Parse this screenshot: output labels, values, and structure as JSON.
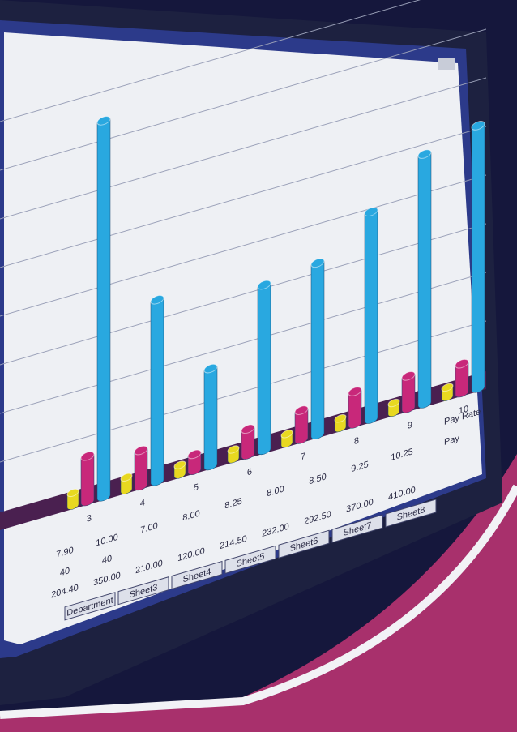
{
  "chart_data": {
    "type": "bar3d",
    "categories": [
      "3",
      "4",
      "5",
      "6",
      "7",
      "8",
      "9",
      "10"
    ],
    "series": [
      {
        "color": "#29a8e0",
        "values": [
          580,
          280,
          150,
          255,
          265,
          320,
          385,
          405
        ]
      },
      {
        "color": "#c8287a",
        "values": [
          70,
          55,
          25,
          40,
          45,
          50,
          50,
          45
        ]
      },
      {
        "color": "#e8d820",
        "values": [
          20,
          20,
          15,
          15,
          15,
          15,
          15,
          15
        ]
      }
    ],
    "ylim": [
      0,
      600
    ]
  },
  "table": {
    "row_labels": [
      "Pay Rate",
      "Pay"
    ],
    "rows": [
      [
        "7.90",
        "10.00",
        "7.00",
        "8.00",
        "8.25",
        "8.00",
        "8.50",
        "9.25",
        "10.25"
      ],
      [
        "40",
        "40"
      ],
      [
        "204.40",
        "350.00",
        "210.00",
        "120.00",
        "214.50",
        "232.00",
        "292.50",
        "370.00",
        "410.00"
      ]
    ]
  },
  "tabs": [
    "Department",
    "Sheet3",
    "Sheet4",
    "Sheet5",
    "Sheet6",
    "Sheet7",
    "Sheet8"
  ]
}
